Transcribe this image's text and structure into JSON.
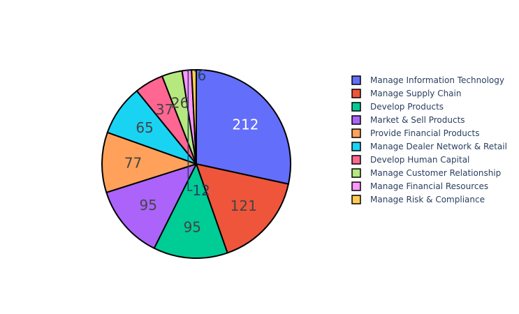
{
  "chart_data": {
    "type": "pie",
    "title": "",
    "categories": [
      "Manage Information Technology",
      "Manage Supply Chain",
      "Develop Products",
      "Market & Sell Products",
      "Provide Financial Products",
      "Manage Dealer Network & Retail",
      "Develop Human Capital",
      "Manage Customer Relationship",
      "Manage Financial Resources",
      "Manage Risk & Compliance"
    ],
    "values": [
      212,
      121,
      95,
      95,
      77,
      65,
      37,
      26,
      12,
      6
    ],
    "labels": [
      "212",
      "121",
      "95",
      "95",
      "77",
      "65",
      "37",
      "26",
      "12",
      "6"
    ],
    "colors": [
      "#636efa",
      "#EF553B",
      "#00cc96",
      "#ab63fa",
      "#FFA15A",
      "#19d3f3",
      "#FF6692",
      "#B6E880",
      "#FF97FF",
      "#FECB52"
    ],
    "legend_position": "right",
    "sort": "descending",
    "direction": "clockwise"
  }
}
